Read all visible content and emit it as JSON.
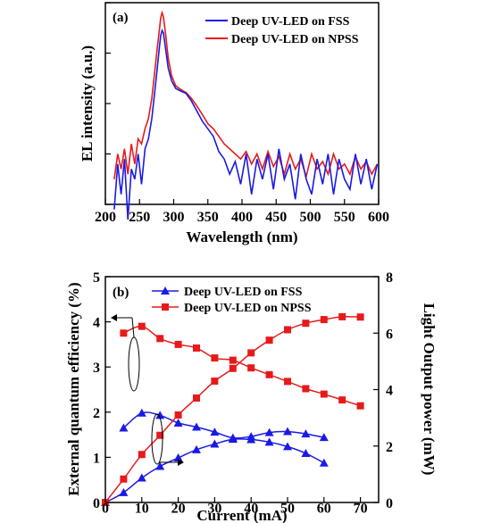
{
  "chart_data": [
    {
      "type": "line",
      "panel_label": "(a)",
      "xlabel": "Wavelength (nm)",
      "ylabel": "EL intensity (a.u.)",
      "xlim": [
        200,
        600
      ],
      "x_ticks": [
        200,
        250,
        300,
        350,
        400,
        450,
        500,
        550,
        600
      ],
      "y_scale": "log",
      "ylim_decades": [
        0,
        4
      ],
      "legend_position": "top-right",
      "series": [
        {
          "name": "Deep UV-LED on FSS",
          "color": "#1a1ae6",
          "x": [
            213,
            218,
            223,
            228,
            233,
            238,
            243,
            248,
            253,
            258,
            263,
            268,
            272,
            276,
            279,
            281,
            283,
            285,
            288,
            292,
            297,
            303,
            310,
            318,
            326,
            334,
            342,
            350,
            358,
            366,
            374,
            382,
            390,
            398,
            406,
            414,
            422,
            430,
            438,
            446,
            454,
            462,
            470,
            478,
            486,
            494,
            502,
            510,
            518,
            526,
            534,
            542,
            550,
            558,
            566,
            574,
            582,
            590,
            598
          ],
          "y": [
            -0.1,
            0.8,
            0.2,
            0.9,
            -0.3,
            0.7,
            0.5,
            1.0,
            0.4,
            1.1,
            1.3,
            1.7,
            2.2,
            2.7,
            3.1,
            3.35,
            3.45,
            3.4,
            3.1,
            2.7,
            2.45,
            2.3,
            2.25,
            2.2,
            2.05,
            1.85,
            1.65,
            1.5,
            1.35,
            1.05,
            0.9,
            0.6,
            0.85,
            0.4,
            1.0,
            0.2,
            0.9,
            0.5,
            1.0,
            0.3,
            1.1,
            0.5,
            0.8,
            0.1,
            1.0,
            0.5,
            0.2,
            0.9,
            0.4,
            1.0,
            0.2,
            0.9,
            0.5,
            0.3,
            1.0,
            0.4,
            0.9,
            0.3,
            0.8
          ]
        },
        {
          "name": "Deep UV-LED on NPSS",
          "color": "#e61a1a",
          "x": [
            213,
            218,
            223,
            228,
            233,
            238,
            243,
            248,
            253,
            258,
            263,
            268,
            272,
            276,
            279,
            281,
            283,
            285,
            288,
            292,
            297,
            303,
            310,
            318,
            326,
            334,
            342,
            350,
            358,
            366,
            374,
            382,
            390,
            398,
            406,
            414,
            422,
            430,
            438,
            446,
            454,
            462,
            470,
            478,
            486,
            494,
            502,
            510,
            518,
            526,
            534,
            542,
            550,
            558,
            566,
            574,
            582,
            590,
            598
          ],
          "y": [
            0.5,
            1.0,
            0.7,
            1.1,
            0.6,
            1.2,
            0.8,
            1.3,
            1.2,
            1.5,
            1.7,
            2.1,
            2.6,
            3.1,
            3.45,
            3.7,
            3.8,
            3.72,
            3.4,
            2.9,
            2.55,
            2.35,
            2.28,
            2.22,
            2.1,
            1.95,
            1.78,
            1.6,
            1.5,
            1.35,
            1.2,
            1.1,
            1.0,
            0.9,
            1.05,
            0.8,
            1.0,
            0.7,
            1.05,
            0.75,
            0.95,
            0.6,
            1.0,
            0.7,
            0.9,
            0.55,
            1.0,
            0.7,
            0.85,
            0.6,
            1.0,
            0.7,
            0.8,
            0.6,
            0.95,
            0.7,
            0.85,
            0.6,
            0.8
          ]
        }
      ]
    },
    {
      "type": "line",
      "panel_label": "(b)",
      "xlabel": "Current (mA)",
      "ylabel_left": "External quantum efficiency (%)",
      "ylabel_right": "Light Output power (mW)",
      "xlim": [
        0,
        75
      ],
      "ylim_left": [
        0,
        5
      ],
      "ylim_right": [
        0,
        8
      ],
      "x_ticks": [
        0,
        10,
        20,
        30,
        40,
        50,
        60,
        70
      ],
      "y_ticks_left": [
        0,
        1,
        2,
        3,
        4,
        5
      ],
      "y_ticks_right": [
        0,
        2,
        4,
        6,
        8
      ],
      "legend_position": "top-center",
      "series": [
        {
          "name": "Deep UV-LED on FSS",
          "axis": "left",
          "metric": "EQE",
          "color": "#1a1ae6",
          "marker": "triangle",
          "x": [
            5,
            10,
            15,
            20,
            25,
            30,
            35,
            40,
            45,
            50,
            55,
            60
          ],
          "y": [
            1.65,
            1.98,
            1.93,
            1.76,
            1.67,
            1.56,
            1.43,
            1.46,
            1.55,
            1.57,
            1.52,
            1.44
          ]
        },
        {
          "name": "Deep UV-LED on NPSS",
          "axis": "left",
          "metric": "EQE",
          "color": "#e61a1a",
          "marker": "square",
          "x": [
            5,
            10,
            15,
            20,
            25,
            30,
            35,
            40,
            45,
            50,
            55,
            60,
            65,
            70
          ],
          "y": [
            3.75,
            3.9,
            3.63,
            3.5,
            3.42,
            3.2,
            3.15,
            2.98,
            2.83,
            2.68,
            2.52,
            2.4,
            2.27,
            2.14
          ]
        },
        {
          "name": "Deep UV-LED on FSS",
          "axis": "right",
          "metric": "Light output power",
          "color": "#1a1ae6",
          "marker": "triangle",
          "x": [
            0,
            5,
            10,
            15,
            20,
            25,
            30,
            35,
            40,
            45,
            50,
            55,
            60
          ],
          "y": [
            0,
            0.35,
            0.87,
            1.28,
            1.58,
            1.87,
            2.07,
            2.24,
            2.23,
            2.14,
            1.98,
            1.74,
            1.4
          ]
        },
        {
          "name": "Deep UV-LED on NPSS",
          "axis": "right",
          "metric": "Light output power",
          "color": "#e61a1a",
          "marker": "square",
          "x": [
            0,
            5,
            10,
            15,
            20,
            25,
            30,
            35,
            40,
            45,
            50,
            55,
            60,
            65,
            70
          ],
          "y": [
            0,
            0.83,
            1.7,
            2.38,
            3.1,
            3.7,
            4.3,
            4.75,
            5.3,
            5.75,
            6.12,
            6.35,
            6.48,
            6.58,
            6.57
          ]
        }
      ]
    }
  ]
}
